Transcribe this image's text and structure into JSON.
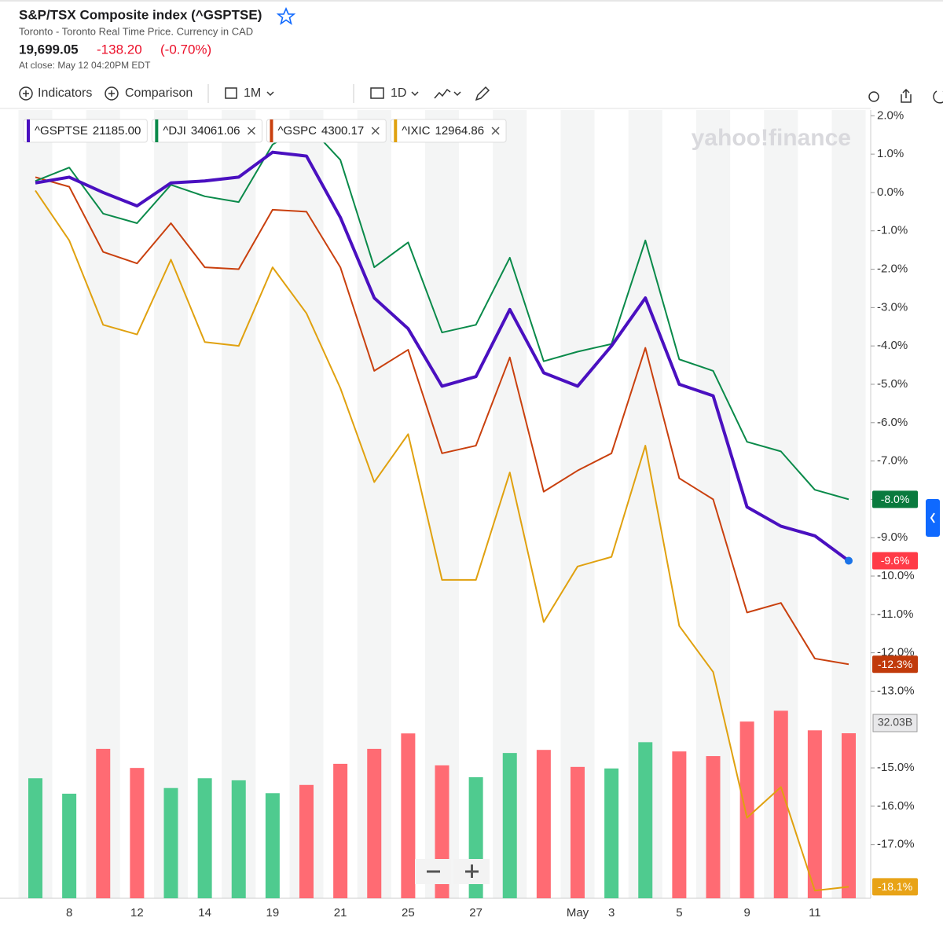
{
  "header": {
    "title": "S&P/TSX Composite index (^GSPTSE)",
    "subtitle": "Toronto - Toronto Real Time Price. Currency in CAD",
    "price": "19,699.05",
    "change": "-138.20",
    "change_percent": "(-0.70%)",
    "close_time": "At close: May 12 04:20PM EDT"
  },
  "toolbar": {
    "indicators": "Indicators",
    "comparison": "Comparison",
    "range": "1M",
    "interval": "1D"
  },
  "chart_data": {
    "type": "line",
    "watermark": "yahoo!finance",
    "categories": [
      null,
      "8",
      null,
      "12",
      null,
      "14",
      null,
      "19",
      null,
      "21",
      null,
      "25",
      null,
      "27",
      null,
      null,
      "May",
      "3",
      null,
      "5",
      null,
      "9",
      null,
      "11",
      null
    ],
    "ylim": [
      -18.4,
      2.15
    ],
    "yticks": [
      {
        "value": 2,
        "label": "2.0%"
      },
      {
        "value": 1,
        "label": "1.0%"
      },
      {
        "value": 0,
        "label": "0.0%"
      },
      {
        "value": -1,
        "label": "-1.0%"
      },
      {
        "value": -2,
        "label": "-2.0%"
      },
      {
        "value": -3,
        "label": "-3.0%"
      },
      {
        "value": -4,
        "label": "-4.0%"
      },
      {
        "value": -5,
        "label": "-5.0%"
      },
      {
        "value": -6,
        "label": "-6.0%"
      },
      {
        "value": -7,
        "label": "-7.0%"
      },
      {
        "value": -8,
        "label": "-8.0%"
      },
      {
        "value": -9,
        "label": "-9.0%"
      },
      {
        "value": -10,
        "label": "-10.0%"
      },
      {
        "value": -11,
        "label": "-11.0%"
      },
      {
        "value": -12,
        "label": "-12.0%"
      },
      {
        "value": -13,
        "label": "-13.0%"
      },
      {
        "value": -15,
        "label": "-15.0%"
      },
      {
        "value": -16,
        "label": "-16.0%"
      },
      {
        "value": -17,
        "label": "-17.0%"
      }
    ],
    "series": [
      {
        "name": "^GSPTSE",
        "quote": "21185.00",
        "color": "#4a10c0",
        "width": 4,
        "label_color": "#ff3b47",
        "end_label": "-9.6%",
        "values": [
          0.25,
          0.4,
          0.0,
          -0.35,
          0.25,
          0.3,
          0.4,
          1.05,
          0.95,
          -0.65,
          -2.75,
          -3.55,
          -5.05,
          -4.8,
          -3.05,
          -4.7,
          -5.05,
          -4.0,
          -2.75,
          -5.0,
          -5.3,
          -8.2,
          -8.7,
          -8.95,
          -9.6
        ]
      },
      {
        "name": "^DJI",
        "quote": "34061.06",
        "color": "#0a8a4a",
        "width": 2,
        "label_color": "#0a7a3e",
        "end_label": "-8.0%",
        "values": [
          0.3,
          0.65,
          -0.55,
          -0.8,
          0.2,
          -0.1,
          -0.25,
          1.25,
          1.8,
          0.85,
          -1.95,
          -1.3,
          -3.65,
          -3.45,
          -1.7,
          -4.4,
          -4.15,
          -3.95,
          -1.25,
          -4.35,
          -4.65,
          -6.5,
          -6.75,
          -7.75,
          -8.0
        ]
      },
      {
        "name": "^GSPC",
        "quote": "4300.17",
        "color": "#c9400e",
        "width": 2,
        "label_color": "#c13a0b",
        "end_label": "-12.3%",
        "values": [
          0.4,
          0.15,
          -1.55,
          -1.85,
          -0.8,
          -1.95,
          -2.0,
          -0.45,
          -0.5,
          -1.95,
          -4.65,
          -4.1,
          -6.8,
          -6.6,
          -4.3,
          -7.8,
          -7.25,
          -6.8,
          -4.05,
          -7.45,
          -8.0,
          -10.95,
          -10.7,
          -12.15,
          -12.3
        ]
      },
      {
        "name": "^IXIC",
        "quote": "12964.86",
        "color": "#e0a10f",
        "width": 2,
        "label_color": "#e8a317",
        "end_label": "-18.1%",
        "values": [
          0.05,
          -1.25,
          -3.45,
          -3.7,
          -1.75,
          -3.9,
          -4.0,
          -1.95,
          -3.15,
          -5.1,
          -7.55,
          -6.3,
          -10.1,
          -10.1,
          -7.3,
          -11.2,
          -9.75,
          -9.5,
          -6.6,
          -11.3,
          -12.5,
          -16.3,
          -15.5,
          -18.2,
          -18.1
        ]
      }
    ],
    "volume": {
      "y2lim": [
        0,
        153
      ],
      "values": [
        23.3,
        20.3,
        29.0,
        25.3,
        21.4,
        23.3,
        22.9,
        20.4,
        22.0,
        26.1,
        29.0,
        32.0,
        25.8,
        23.5,
        28.2,
        28.8,
        25.5,
        25.2,
        30.3,
        28.5,
        27.6,
        34.3,
        36.4,
        32.6,
        32.03
      ],
      "value_labels": [
        null,
        null,
        null,
        null,
        null,
        null,
        null,
        null,
        null,
        null,
        null,
        null,
        null,
        null,
        null,
        null,
        null,
        null,
        null,
        null,
        null,
        null,
        null,
        null,
        "32.03B"
      ],
      "colors": [
        "#4fcb8f",
        "#4fcb8f",
        "#ff6b73",
        "#ff6b73",
        "#4fcb8f",
        "#4fcb8f",
        "#4fcb8f",
        "#4fcb8f",
        "#ff6b73",
        "#ff6b73",
        "#ff6b73",
        "#ff6b73",
        "#ff6b73",
        "#4fcb8f",
        "#4fcb8f",
        "#ff6b73",
        "#ff6b73",
        "#4fcb8f",
        "#4fcb8f",
        "#ff6b73",
        "#ff6b73",
        "#ff6b73",
        "#ff6b73",
        "#ff6b73",
        "#ff6b73"
      ]
    }
  }
}
